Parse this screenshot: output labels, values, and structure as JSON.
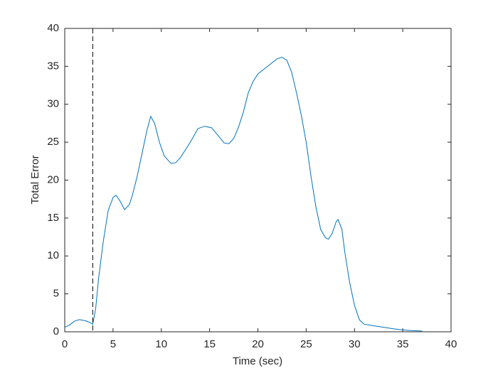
{
  "chart_data": {
    "type": "line",
    "xlabel": "Time (sec)",
    "ylabel": "Total Error",
    "x": [
      0,
      0.5,
      1,
      1.5,
      2,
      2.5,
      2.9,
      3.2,
      3.5,
      4,
      4.5,
      5,
      5.3,
      5.7,
      6.2,
      6.7,
      7,
      7.5,
      8,
      8.5,
      8.9,
      9.3,
      9.8,
      10.3,
      11,
      11.5,
      12,
      13,
      13.8,
      14.5,
      15.2,
      15.8,
      16.5,
      17,
      17.5,
      18,
      18.5,
      19,
      19.5,
      20,
      21,
      22,
      22.5,
      23,
      23.5,
      24,
      24.5,
      25,
      25.5,
      26,
      26.5,
      27,
      27.3,
      27.7,
      28.1,
      28.3,
      28.7,
      29,
      29.5,
      30,
      30.5,
      31,
      32,
      33,
      34,
      35,
      36,
      37
    ],
    "series": [
      {
        "color": "#0072bd",
        "values": [
          0.6,
          0.9,
          1.4,
          1.6,
          1.5,
          1.3,
          1.0,
          3,
          7,
          12,
          16,
          17.7,
          18,
          17.3,
          16.1,
          16.8,
          18,
          20.5,
          23.5,
          26.5,
          28.4,
          27.5,
          25,
          23.2,
          22.2,
          22.3,
          23,
          25,
          26.8,
          27.1,
          26.9,
          26,
          24.9,
          24.8,
          25.5,
          27,
          29,
          31.5,
          33,
          34,
          35,
          36,
          36.2,
          35.8,
          34.2,
          31.5,
          28.5,
          25,
          20.5,
          16.5,
          13.5,
          12.4,
          12.2,
          13,
          14.5,
          14.8,
          13.5,
          10.5,
          6.5,
          3.5,
          1.6,
          1.0,
          0.8,
          0.6,
          0.4,
          0.25,
          0.15,
          0.1
        ]
      }
    ],
    "vline_x": 2.9,
    "xlim": [
      0,
      40
    ],
    "xticks": [
      0,
      5,
      10,
      15,
      20,
      25,
      30,
      35,
      40
    ],
    "ylim": [
      0,
      40
    ],
    "yticks": [
      0,
      5,
      10,
      15,
      20,
      25,
      30,
      35,
      40
    ]
  }
}
